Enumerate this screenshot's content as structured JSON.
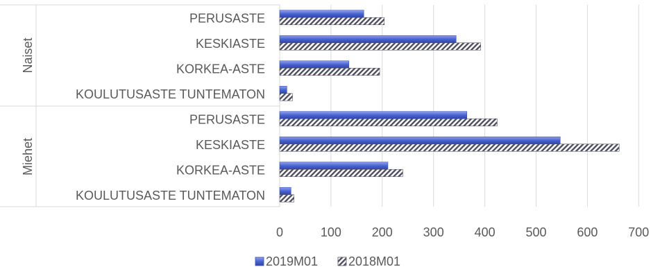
{
  "chart_data": {
    "type": "bar",
    "orientation": "horizontal",
    "title": "",
    "xlabel": "",
    "ylabel": "",
    "xlim": [
      0,
      700
    ],
    "xticks": [
      0,
      100,
      200,
      300,
      400,
      500,
      600,
      700
    ],
    "grid": true,
    "legend_position": "bottom",
    "groups": [
      {
        "name": "Naiset",
        "categories": [
          "PERUSASTE",
          "KESKIASTE",
          "KORKEA-ASTE",
          "KOULUTUSASTE TUNTEMATON"
        ]
      },
      {
        "name": "Miehet",
        "categories": [
          "PERUSASTE",
          "KESKIASTE",
          "KORKEA-ASTE",
          "KOULUTUSASTE TUNTEMATON"
        ]
      }
    ],
    "series": [
      {
        "name": "2019M01",
        "color": "#4a63d3",
        "values": [
          164,
          344,
          135,
          14,
          365,
          547,
          211,
          22
        ]
      },
      {
        "name": "2018M01",
        "color": "#5a5a6e",
        "pattern": "diagonal-hatch",
        "values": [
          204,
          392,
          195,
          25,
          424,
          662,
          240,
          28
        ]
      }
    ]
  }
}
